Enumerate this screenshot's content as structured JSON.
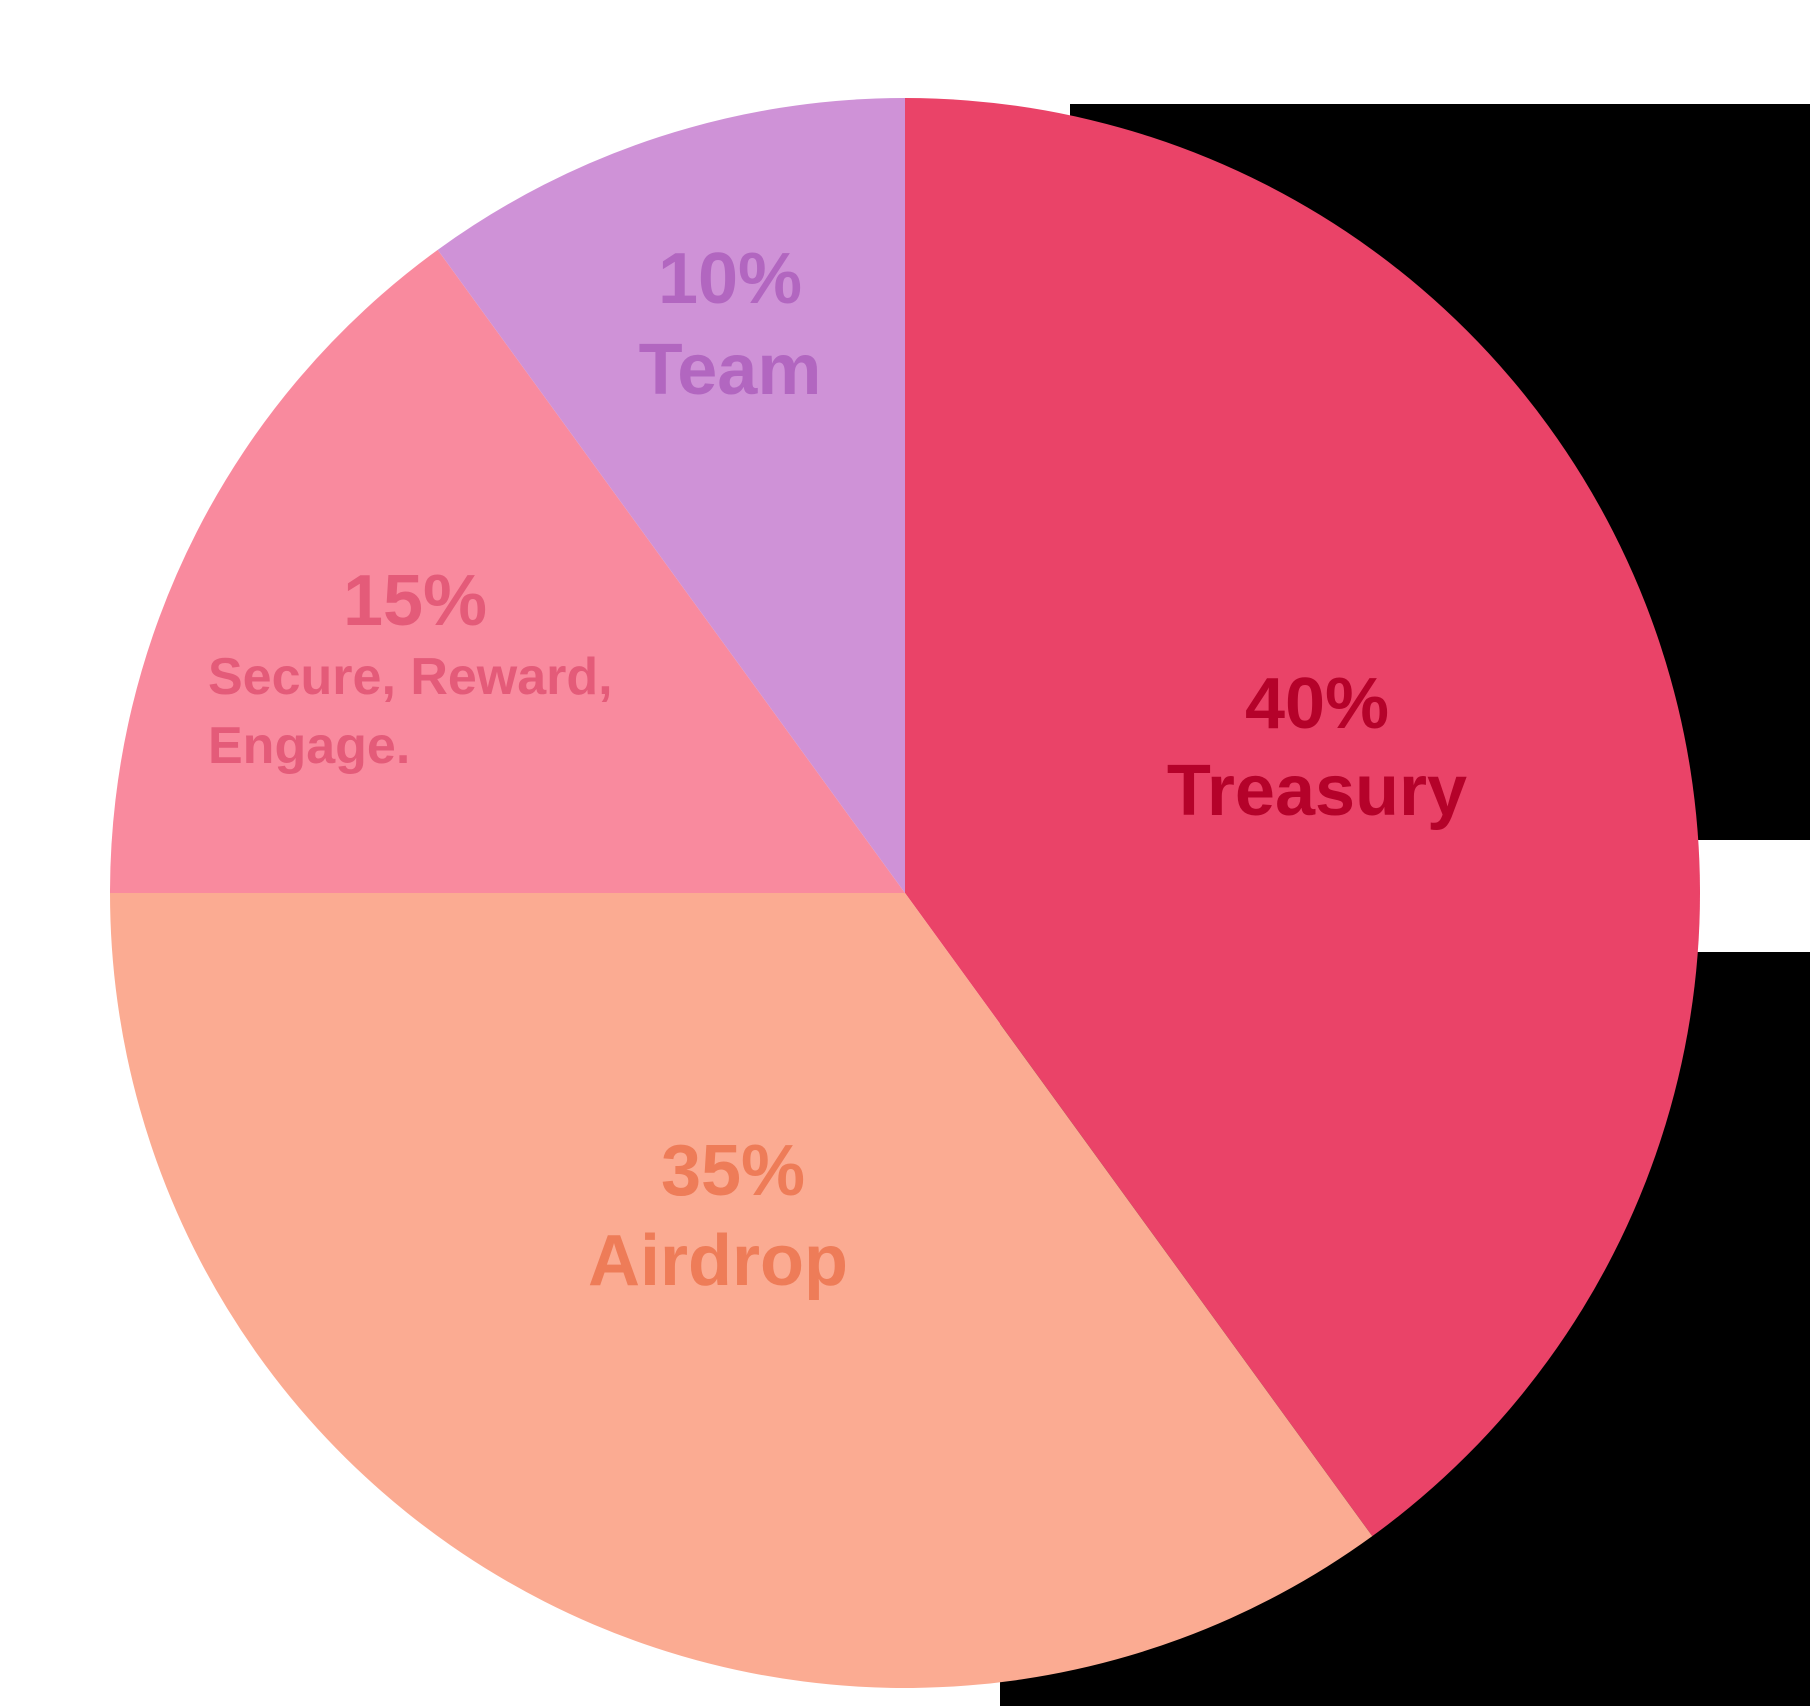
{
  "chart_data": {
    "type": "pie",
    "start_angle_deg": 0,
    "direction": "clockwise",
    "slices": [
      {
        "label": "Treasury",
        "value": 40,
        "value_label": "40%",
        "color": "#ea4368",
        "text_color": "#b5022a"
      },
      {
        "label": "Airdrop",
        "value": 35,
        "value_label": "35%",
        "color": "#fbab92",
        "text_color": "#ee7c58"
      },
      {
        "label": "Secure, Reward, Engage.",
        "label_lines": [
          "Secure, Reward,",
          "Engage."
        ],
        "value": 15,
        "value_label": "15%",
        "color": "#f98a9e",
        "text_color": "#e45b79"
      },
      {
        "label": "Team",
        "value": 10,
        "value_label": "10%",
        "color": "#cf92d7",
        "text_color": "#b266c0"
      }
    ]
  }
}
